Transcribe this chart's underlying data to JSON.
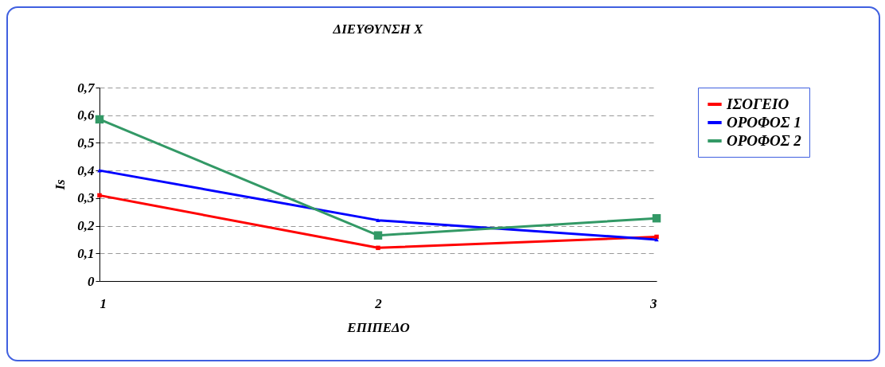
{
  "chart_data": {
    "type": "line",
    "title": "ΔΙΕΥΘΥΝΣΗ Χ",
    "xlabel": "ΕΠΙΠΕΔΟ",
    "ylabel": "Is",
    "x": [
      1,
      2,
      3
    ],
    "series": [
      {
        "name": "ΙΣΟΓΕΙΟ",
        "color": "#ff0000",
        "marker": "square",
        "values": [
          0.31,
          0.12,
          0.16
        ]
      },
      {
        "name": "ΟΡΟΦΟΣ 1",
        "color": "#0000ff",
        "marker": "triangle",
        "values": [
          0.4,
          0.22,
          0.15
        ]
      },
      {
        "name": "ΟΡΟΦΟΣ 2",
        "color": "#339966",
        "marker": "square",
        "values": [
          0.585,
          0.165,
          0.227
        ]
      }
    ],
    "xlim": [
      1,
      3
    ],
    "xticks": [
      1,
      2,
      3
    ],
    "ylim": [
      0,
      0.7
    ],
    "yticks": [
      0,
      {
        "value": 0.1,
        "label": "0,1"
      },
      {
        "value": 0.2,
        "label": "0,2"
      },
      {
        "value": 0.3,
        "label": "0,3"
      },
      {
        "value": 0.4,
        "label": "0,4"
      },
      {
        "value": 0.5,
        "label": "0,5"
      },
      {
        "value": 0.6,
        "label": "0,6"
      },
      {
        "value": 0.7,
        "label": "0,7"
      }
    ],
    "grid": "y",
    "legend": "right"
  }
}
